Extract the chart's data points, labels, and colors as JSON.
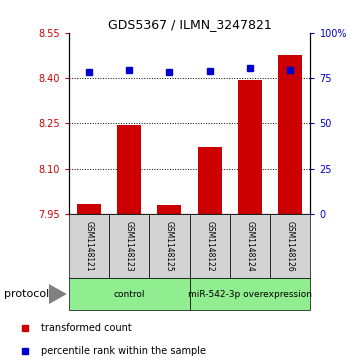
{
  "title": "GDS5367 / ILMN_3247821",
  "samples": [
    "GSM1148121",
    "GSM1148123",
    "GSM1148125",
    "GSM1148122",
    "GSM1148124",
    "GSM1148126"
  ],
  "bar_values": [
    7.982,
    8.245,
    7.979,
    8.173,
    8.393,
    8.475
  ],
  "percentile_values": [
    78.5,
    79.5,
    78.2,
    79.0,
    80.5,
    79.2
  ],
  "ylim": [
    7.95,
    8.55
  ],
  "ylim_right": [
    0,
    100
  ],
  "yticks_left": [
    7.95,
    8.1,
    8.25,
    8.4,
    8.55
  ],
  "yticks_right": [
    0,
    25,
    50,
    75,
    100
  ],
  "ytick_labels_right": [
    "0",
    "25",
    "50",
    "75",
    "100%"
  ],
  "gridlines": [
    8.1,
    8.25,
    8.4
  ],
  "bar_color": "#cc0000",
  "dot_color": "#0000cc",
  "bar_bottom": 7.95,
  "group_color": "#90ee90",
  "sample_box_color": "#d3d3d3",
  "groups": [
    {
      "label": "control",
      "start": 0,
      "end": 2
    },
    {
      "label": "miR-542-3p overexpression",
      "start": 3,
      "end": 5
    }
  ],
  "legend_items": [
    {
      "label": "transformed count",
      "color": "#cc0000"
    },
    {
      "label": "percentile rank within the sample",
      "color": "#0000cc"
    }
  ],
  "protocol_label": "protocol",
  "title_fontsize": 9,
  "axis_fontsize": 7,
  "label_fontsize": 5.5,
  "group_fontsize": 6.5,
  "legend_fontsize": 7,
  "protocol_fontsize": 8
}
